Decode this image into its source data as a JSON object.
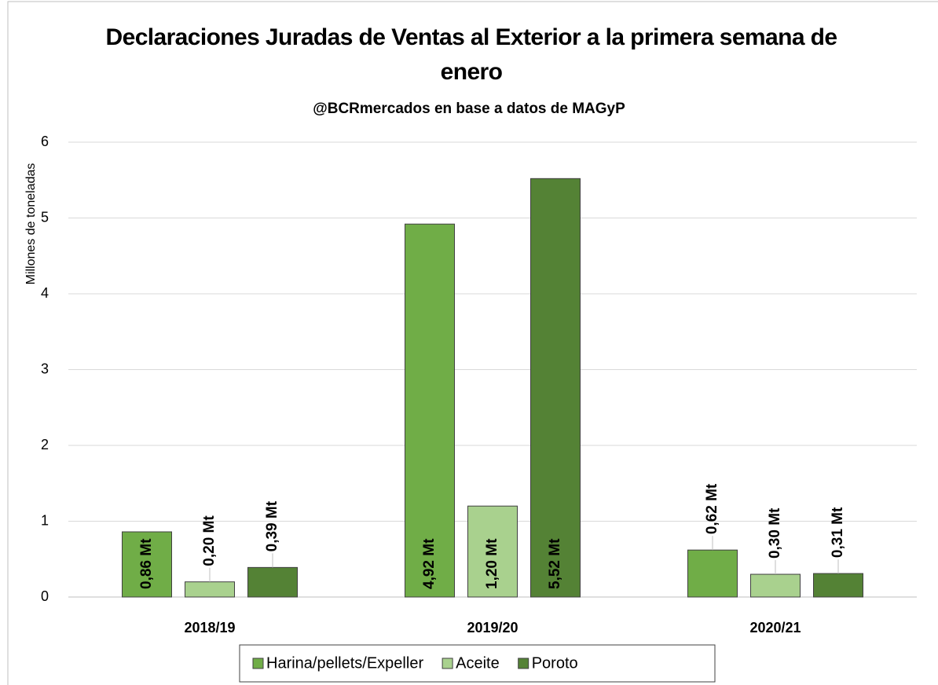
{
  "chart_data": {
    "type": "bar",
    "title": "Declaraciones Juradas de Ventas al Exterior a la primera semana de enero",
    "subtitle": "@BCRmercados en base a datos de MAGyP",
    "y_label": "Millones de toneladas",
    "categories": [
      "2018/19",
      "2019/20",
      "2020/21"
    ],
    "series": [
      {
        "name": "Harina/pellets/Expeller",
        "color": "#70ad47",
        "values": [
          0.86,
          4.92,
          0.62
        ],
        "value_labels": [
          "0,86 Mt",
          "4,92 Mt",
          "0,62 Mt"
        ]
      },
      {
        "name": "Aceite",
        "color": "#a9d18e",
        "values": [
          0.2,
          1.2,
          0.3
        ],
        "value_labels": [
          "0,20 Mt",
          "1,20 Mt",
          "0,30 Mt"
        ]
      },
      {
        "name": "Poroto",
        "color": "#548235",
        "values": [
          0.39,
          5.52,
          0.31
        ],
        "value_labels": [
          "0,39 Mt",
          "5,52 Mt",
          "0,31 Mt"
        ]
      }
    ],
    "ylim": [
      0,
      6
    ],
    "yticks": [
      0,
      1,
      2,
      3,
      4,
      5,
      6
    ],
    "grid": true,
    "legend": "bottom"
  }
}
